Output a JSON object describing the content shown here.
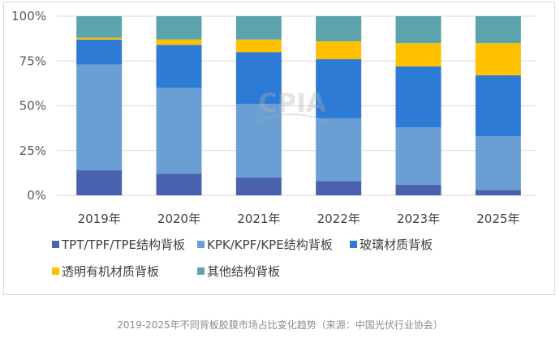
{
  "chart_data": {
    "type": "bar",
    "stacked": true,
    "percent": true,
    "categories": [
      "2019年",
      "2020年",
      "2021年",
      "2022年",
      "2023年",
      "2025年"
    ],
    "ylim": [
      0,
      100
    ],
    "yticks": [
      "0%",
      "25%",
      "50%",
      "75%",
      "100%"
    ],
    "grid": true,
    "legend_position": "bottom",
    "series": [
      {
        "name": "TPT/TPF/TPE结构背板",
        "color": "#4a62ad",
        "values": [
          14,
          12,
          10,
          8,
          6,
          3
        ]
      },
      {
        "name": "KPK/KPF/KPE结构背板",
        "color": "#6a9fd4",
        "values": [
          59,
          48,
          41,
          35,
          32,
          30
        ]
      },
      {
        "name": "玻璃材质背板",
        "color": "#2e7bd6",
        "values": [
          14,
          24,
          29,
          33,
          34,
          34
        ]
      },
      {
        "name": "透明有机材质背板",
        "color": "#ffc000",
        "values": [
          1,
          3,
          7,
          10,
          13,
          18
        ]
      },
      {
        "name": "其他结构背板",
        "color": "#5ba3ad",
        "values": [
          12,
          13,
          13,
          14,
          15,
          15
        ]
      }
    ]
  },
  "watermark": {
    "text": "CPIA"
  },
  "caption": "2019-2025年不同背板胶膜市场占比变化趋势（来源：中国光伏行业协会）"
}
